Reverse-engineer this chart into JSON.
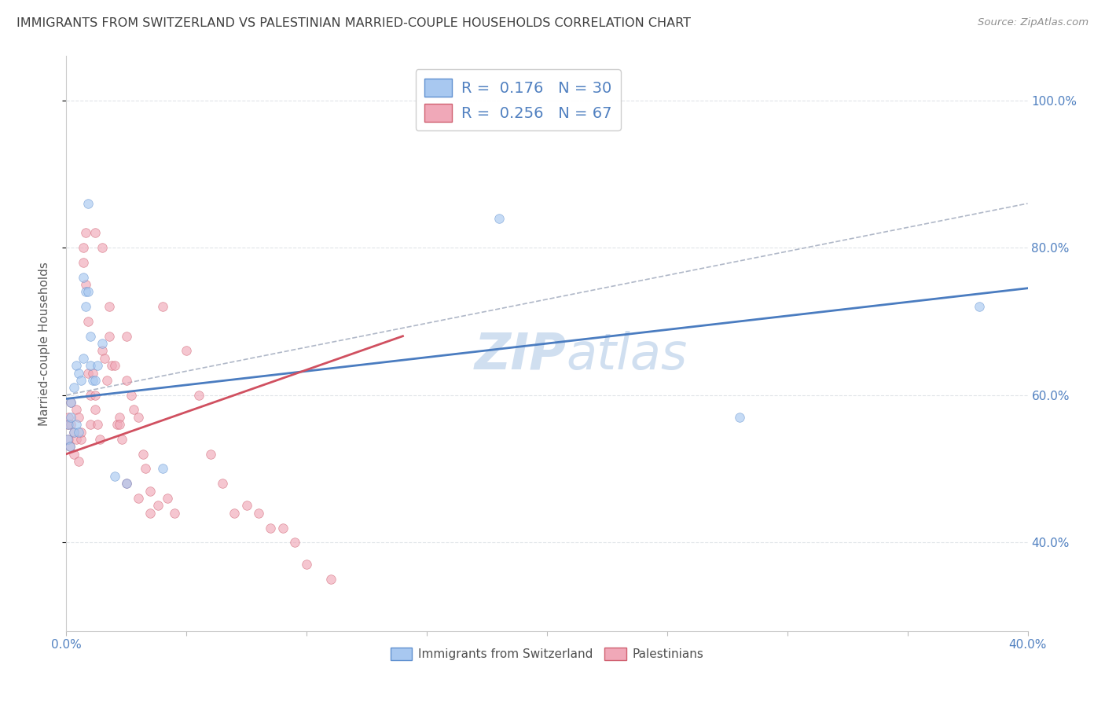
{
  "title": "IMMIGRANTS FROM SWITZERLAND VS PALESTINIAN MARRIED-COUPLE HOUSEHOLDS CORRELATION CHART",
  "source": "Source: ZipAtlas.com",
  "ylabel_label": "Married-couple Households",
  "legend_bottom_left": "Immigrants from Switzerland",
  "legend_bottom_right": "Palestinians",
  "r1": 0.176,
  "n1": 30,
  "r2": 0.256,
  "n2": 67,
  "blue_color": "#a8c8f0",
  "pink_color": "#f0a8b8",
  "blue_edge_color": "#6090d0",
  "pink_edge_color": "#d06070",
  "blue_line_color": "#4a7cc0",
  "pink_line_color": "#d05060",
  "dashed_line_color": "#b0b8c8",
  "grid_color": "#e0e4e8",
  "title_color": "#404040",
  "source_color": "#909090",
  "axis_label_color": "#5080c0",
  "legend_text_color": "#5080c0",
  "watermark_color": "#d0dff0",
  "xlim": [
    0.0,
    0.4
  ],
  "ylim": [
    0.28,
    1.06
  ],
  "y_ticks": [
    0.4,
    0.6,
    0.8,
    1.0
  ],
  "y_tick_labels": [
    "40.0%",
    "60.0%",
    "80.0%",
    "100.0%"
  ],
  "x_tick_left": "0.0%",
  "x_tick_right": "40.0%",
  "blue_x": [
    0.0005,
    0.001,
    0.0015,
    0.002,
    0.002,
    0.003,
    0.003,
    0.004,
    0.004,
    0.005,
    0.005,
    0.006,
    0.007,
    0.007,
    0.008,
    0.008,
    0.009,
    0.009,
    0.01,
    0.01,
    0.011,
    0.012,
    0.013,
    0.015,
    0.02,
    0.025,
    0.04,
    0.18,
    0.28,
    0.38
  ],
  "blue_y": [
    0.54,
    0.56,
    0.53,
    0.57,
    0.59,
    0.55,
    0.61,
    0.56,
    0.64,
    0.63,
    0.55,
    0.62,
    0.76,
    0.65,
    0.74,
    0.72,
    0.86,
    0.74,
    0.68,
    0.64,
    0.62,
    0.62,
    0.64,
    0.67,
    0.49,
    0.48,
    0.5,
    0.84,
    0.57,
    0.72
  ],
  "pink_x": [
    0.0005,
    0.001,
    0.001,
    0.0015,
    0.002,
    0.002,
    0.003,
    0.003,
    0.004,
    0.004,
    0.005,
    0.005,
    0.006,
    0.006,
    0.007,
    0.007,
    0.008,
    0.008,
    0.009,
    0.009,
    0.01,
    0.01,
    0.011,
    0.012,
    0.012,
    0.013,
    0.014,
    0.015,
    0.016,
    0.017,
    0.018,
    0.019,
    0.02,
    0.021,
    0.022,
    0.023,
    0.025,
    0.025,
    0.027,
    0.028,
    0.03,
    0.032,
    0.033,
    0.035,
    0.038,
    0.04,
    0.042,
    0.045,
    0.05,
    0.055,
    0.06,
    0.065,
    0.07,
    0.075,
    0.08,
    0.085,
    0.09,
    0.095,
    0.1,
    0.11,
    0.012,
    0.015,
    0.018,
    0.022,
    0.025,
    0.03,
    0.035
  ],
  "pink_y": [
    0.56,
    0.54,
    0.57,
    0.53,
    0.56,
    0.59,
    0.52,
    0.55,
    0.58,
    0.54,
    0.51,
    0.57,
    0.54,
    0.55,
    0.78,
    0.8,
    0.82,
    0.75,
    0.7,
    0.63,
    0.6,
    0.56,
    0.63,
    0.6,
    0.58,
    0.56,
    0.54,
    0.66,
    0.65,
    0.62,
    0.72,
    0.64,
    0.64,
    0.56,
    0.57,
    0.54,
    0.68,
    0.62,
    0.6,
    0.58,
    0.57,
    0.52,
    0.5,
    0.47,
    0.45,
    0.72,
    0.46,
    0.44,
    0.66,
    0.6,
    0.52,
    0.48,
    0.44,
    0.45,
    0.44,
    0.42,
    0.42,
    0.4,
    0.37,
    0.35,
    0.82,
    0.8,
    0.68,
    0.56,
    0.48,
    0.46,
    0.44
  ],
  "blue_line_y_at_0": 0.595,
  "blue_line_y_at_04": 0.745,
  "pink_line_y_at_0": 0.52,
  "pink_line_y_at_014": 0.68,
  "dashed_line_y_at_0": 0.6,
  "dashed_line_y_at_04": 0.86,
  "pink_line_x_end": 0.14,
  "scatter_size": 70,
  "scatter_alpha": 0.65
}
